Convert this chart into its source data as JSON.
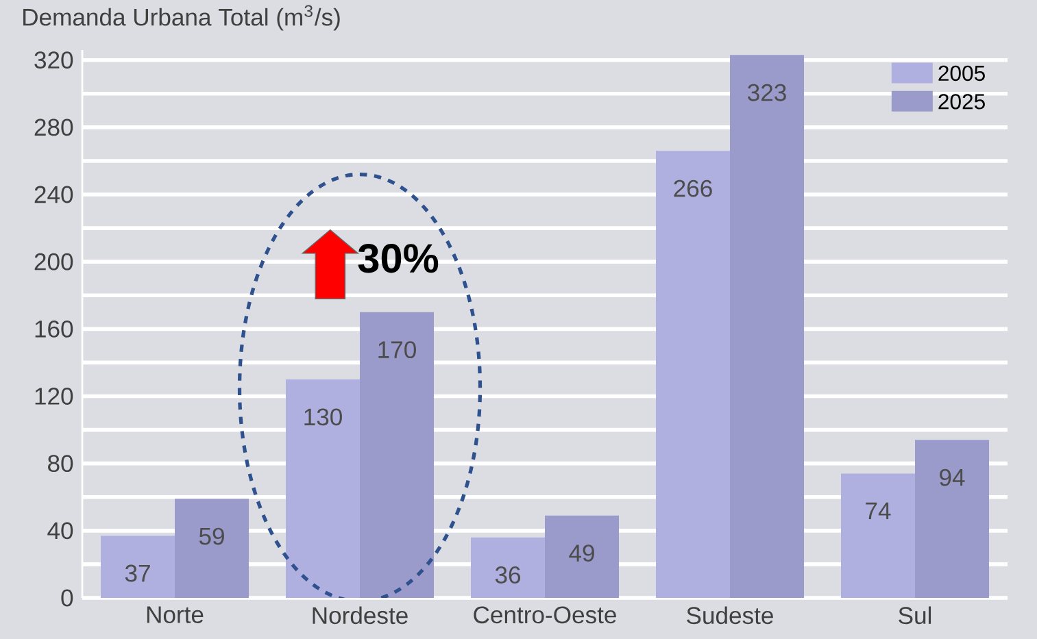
{
  "chart_data": {
    "type": "bar",
    "ylabel": "Demanda Urbana Total (m$^{3}$/s)",
    "categories": [
      "Norte",
      "Nordeste",
      "Centro-Oeste",
      "Sudeste",
      "Sul"
    ],
    "series": [
      {
        "name": "2005",
        "color": "#b0b0e0",
        "values": [
          37,
          130,
          36,
          266,
          74
        ]
      },
      {
        "name": "2025",
        "color": "#9a9acb",
        "values": [
          59,
          170,
          49,
          323,
          94
        ]
      }
    ],
    "ylim": [
      0,
      326
    ],
    "yticks": [
      0,
      {
        "value": 20,
        "label": null
      },
      40,
      {
        "value": 60,
        "label": null
      },
      80,
      {
        "value": 100,
        "label": null
      },
      120,
      {
        "value": 140,
        "label": null
      },
      160,
      {
        "value": 180,
        "label": null
      },
      200,
      {
        "value": 220,
        "label": null
      },
      240,
      {
        "value": 260,
        "label": null
      },
      280,
      {
        "value": 300,
        "label": null
      },
      320
    ],
    "grid": "y",
    "data_labels": true,
    "legend": "top right",
    "annotations": [
      "30%"
    ]
  }
}
